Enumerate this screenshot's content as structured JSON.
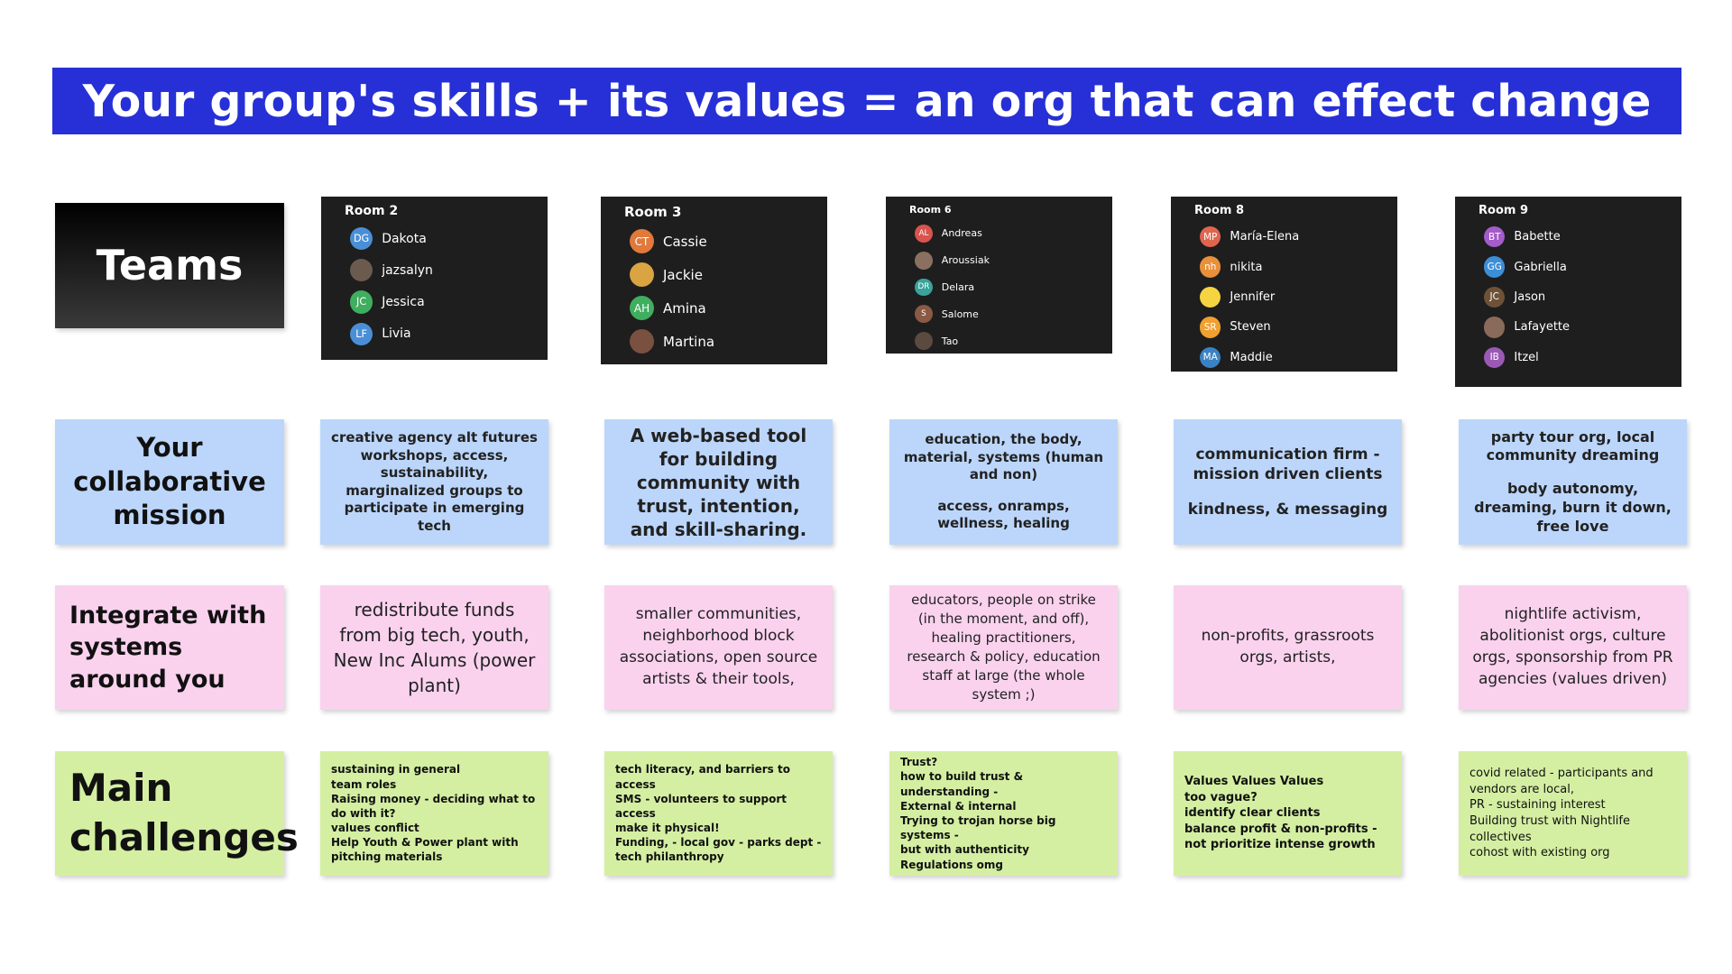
{
  "header": {
    "title": "Your group's skills + its values = an org that can effect change"
  },
  "row_labels": [
    "Teams",
    "Your collaborative mission",
    "Integrate with systems around you",
    "Main challenges"
  ],
  "teams": [
    {
      "room": "Room 2",
      "members": [
        {
          "initials": "DG",
          "name": "Dakota",
          "color": "#4a8fd6"
        },
        {
          "name": "jazsalyn",
          "color": "#6b5a4e"
        },
        {
          "initials": "JC",
          "name": "Jessica",
          "color": "#3fae5f"
        },
        {
          "initials": "LF",
          "name": "Livia",
          "color": "#4a8fd6"
        }
      ]
    },
    {
      "room": "Room 3",
      "members": [
        {
          "initials": "CT",
          "name": "Cassie",
          "color": "#e0793a"
        },
        {
          "name": "Jackie",
          "color": "#d9a441"
        },
        {
          "initials": "AH",
          "name": "Amina",
          "color": "#3fae5f"
        },
        {
          "name": "Martina",
          "color": "#7a5040"
        }
      ]
    },
    {
      "room": "Room 6",
      "members": [
        {
          "initials": "AL",
          "name": "Andreas",
          "color": "#d9534f"
        },
        {
          "name": "Aroussiak",
          "color": "#8a7060"
        },
        {
          "initials": "DR",
          "name": "Delara",
          "color": "#3aa39a"
        },
        {
          "initials": "S",
          "name": "Salome",
          "color": "#8a5a44"
        },
        {
          "name": "Tao",
          "color": "#5a4a40"
        }
      ]
    },
    {
      "room": "Room 8",
      "members": [
        {
          "initials": "MP",
          "name": "María-Elena",
          "color": "#e0654f"
        },
        {
          "initials": "nh",
          "name": "nikita",
          "color": "#e8903a"
        },
        {
          "name": "Jennifer",
          "color": "#f5d442"
        },
        {
          "initials": "SR",
          "name": "Steven",
          "color": "#f0a030"
        },
        {
          "initials": "MA",
          "name": "Maddie",
          "color": "#3b82c4"
        }
      ]
    },
    {
      "room": "Room 9",
      "members": [
        {
          "initials": "BT",
          "name": "Babette",
          "color": "#a35cc9"
        },
        {
          "initials": "GG",
          "name": "Gabriella",
          "color": "#3c8fd6"
        },
        {
          "initials": "JC",
          "name": "Jason",
          "color": "#6e5238"
        },
        {
          "name": "Lafayette",
          "color": "#8a6a5a"
        },
        {
          "initials": "IB",
          "name": "Itzel",
          "color": "#9b59b6"
        }
      ]
    }
  ],
  "mission": [
    [
      "creative agency alt futures workshops, access, sustainability, marginalized groups to participate in emerging tech"
    ],
    [
      "A web-based tool for building community with trust, intention, and skill-sharing."
    ],
    [
      "education, the body, material, systems (human and non)",
      "access, onramps, wellness, healing"
    ],
    [
      "communication firm - mission driven clients",
      "kindness, & messaging"
    ],
    [
      "party tour org, local community dreaming",
      "body autonomy, dreaming, burn it down, free love"
    ]
  ],
  "integrate": [
    "redistribute funds from big tech, youth, New Inc Alums (power plant)",
    "smaller communities, neighborhood block associations, open source artists & their tools,",
    "educators, people on strike (in the moment, and off), healing practitioners, research & policy, education staff at large (the whole system ;)",
    "non-profits, grassroots orgs, artists,",
    "nightlife activism, abolitionist orgs, culture orgs, sponsorship from PR agencies (values driven)"
  ],
  "challenges": [
    [
      "sustaining in general",
      "team roles",
      "Raising money - deciding what to do with it?",
      "values conflict",
      "Help Youth & Power plant with pitching materials"
    ],
    [
      "tech literacy, and barriers to access",
      "SMS - volunteers to support access",
      "make it physical!",
      "Funding, - local gov - parks dept - tech philanthropy"
    ],
    [
      "Trust?",
      "how to build trust & understanding -",
      "External & internal",
      "Trying to trojan horse big systems -",
      "but with authenticity",
      "Regulations omg"
    ],
    [
      "Values Values Values",
      "too vague?",
      "identify clear clients",
      "balance profit & non-profits - not prioritize intense growth"
    ],
    [
      "covid related - participants and vendors are local,",
      "PR - sustaining interest",
      "Building trust with Nightlife collectives",
      "cohost with existing org"
    ]
  ]
}
